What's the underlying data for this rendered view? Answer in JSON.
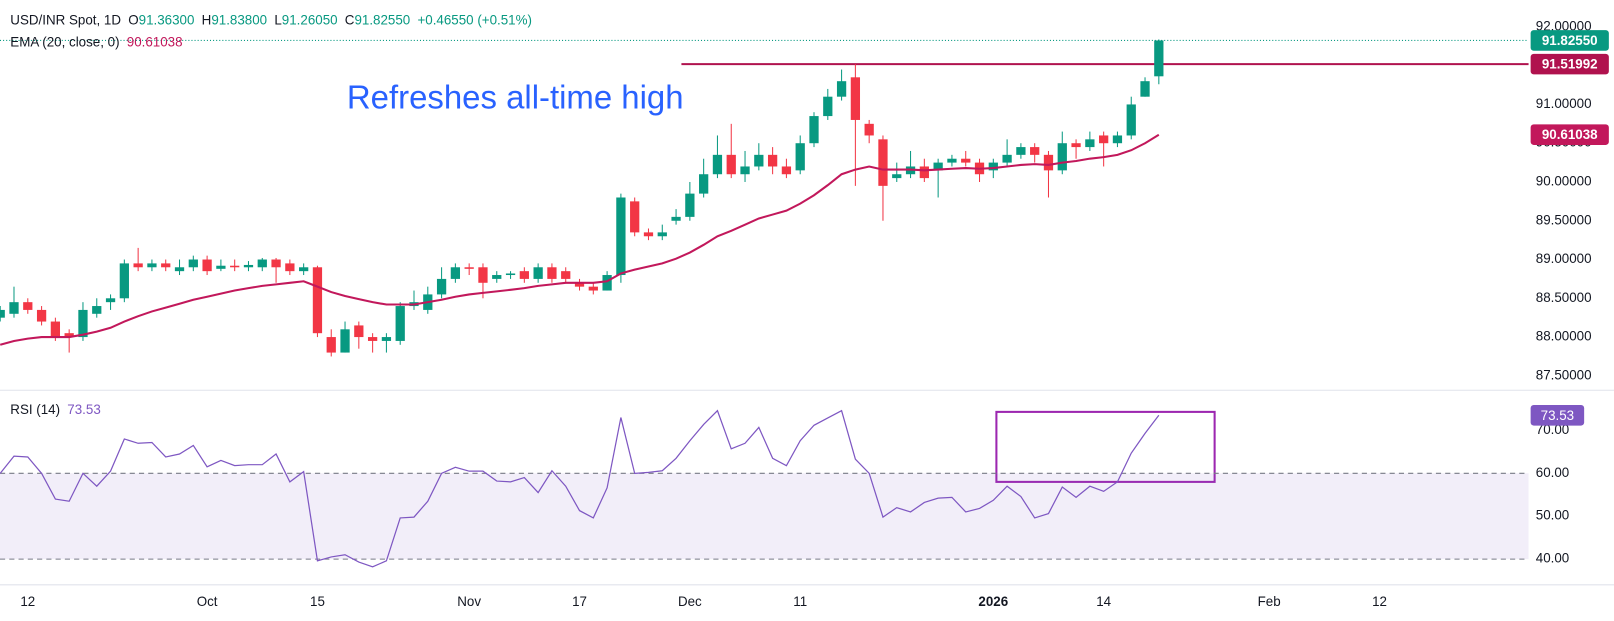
{
  "chart_data": [
    {
      "type": "candlestick",
      "title": "USD/INR Spot, 1D",
      "header": [
        {
          "label": "O",
          "value": "91.36300"
        },
        {
          "label": "H",
          "value": "91.83800"
        },
        {
          "label": "L",
          "value": "91.26050"
        },
        {
          "label": "C",
          "value": "91.82550"
        }
      ],
      "change": "+0.46550 (+0.51%)",
      "annotation": "Refreshes all-time high",
      "up_color": "#089981",
      "down_color": "#f23645",
      "categories": [
        null,
        null,
        "12",
        null,
        null,
        null,
        null,
        null,
        null,
        null,
        null,
        null,
        null,
        null,
        null,
        "Oct",
        null,
        null,
        null,
        null,
        null,
        null,
        null,
        "15",
        null,
        null,
        null,
        null,
        null,
        null,
        null,
        null,
        null,
        null,
        "Nov",
        null,
        null,
        null,
        null,
        null,
        null,
        null,
        "17",
        null,
        null,
        null,
        null,
        null,
        null,
        null,
        "Dec",
        null,
        null,
        null,
        null,
        null,
        null,
        null,
        "11",
        null,
        null,
        null,
        null,
        null,
        null,
        null,
        null,
        null,
        null,
        null,
        null,
        null,
        "2026",
        null,
        null,
        null,
        null,
        null,
        null,
        null,
        "14",
        null,
        null,
        null,
        null,
        null,
        null,
        null,
        null,
        null,
        null,
        null,
        "Feb",
        null,
        null,
        null,
        null,
        null,
        null,
        null,
        "12",
        null,
        null,
        null,
        null,
        null,
        null,
        null,
        null,
        null,
        null
      ],
      "open": [
        88.25,
        88.3,
        88.45,
        88.35,
        88.2,
        88.05,
        88.0,
        88.3,
        88.45,
        88.5,
        88.95,
        88.9,
        88.95,
        88.85,
        88.9,
        89.0,
        88.88,
        88.92,
        88.9,
        88.9,
        89.0,
        88.95,
        88.85,
        88.9,
        88.0,
        87.8,
        88.15,
        88.0,
        87.95,
        87.95,
        88.4,
        88.35,
        88.55,
        88.75,
        88.9,
        88.9,
        88.75,
        88.8,
        88.85,
        88.75,
        88.9,
        88.85,
        88.7,
        88.65,
        88.6,
        88.8,
        89.75,
        89.35,
        89.3,
        89.5,
        89.55,
        89.85,
        90.1,
        90.35,
        90.1,
        90.2,
        90.35,
        90.2,
        90.15,
        90.5,
        90.85,
        91.1,
        91.35,
        90.75,
        90.55,
        90.05,
        90.1,
        90.2,
        90.15,
        90.25,
        90.3,
        90.25,
        90.15,
        90.25,
        90.35,
        90.45,
        90.35,
        90.15,
        90.5,
        90.45,
        90.6,
        90.5,
        90.6,
        91.1,
        91.363,
        null,
        null,
        null,
        null,
        null,
        null,
        null,
        null,
        null,
        null,
        null,
        null,
        null,
        null,
        null,
        null,
        null,
        null,
        null,
        null,
        null,
        null,
        null,
        null,
        null,
        null
      ],
      "high": [
        88.4,
        88.65,
        88.5,
        88.4,
        88.25,
        88.1,
        88.45,
        88.5,
        88.55,
        89.0,
        89.15,
        89.0,
        89.0,
        89.0,
        89.05,
        89.05,
        89.0,
        89.0,
        88.98,
        89.02,
        89.02,
        89.0,
        88.95,
        88.92,
        88.1,
        88.2,
        88.2,
        88.05,
        88.05,
        88.45,
        88.6,
        88.65,
        88.9,
        88.95,
        88.95,
        88.95,
        88.85,
        88.85,
        88.9,
        88.95,
        88.95,
        88.9,
        88.75,
        88.7,
        88.85,
        89.85,
        89.8,
        89.4,
        89.45,
        89.65,
        90.0,
        90.3,
        90.6,
        90.75,
        90.4,
        90.5,
        90.45,
        90.3,
        90.6,
        90.9,
        91.2,
        91.45,
        91.52,
        90.8,
        90.6,
        90.25,
        90.4,
        90.3,
        90.3,
        90.35,
        90.4,
        90.3,
        90.3,
        90.55,
        90.5,
        90.5,
        90.4,
        90.65,
        90.55,
        90.65,
        90.65,
        90.65,
        91.1,
        91.35,
        91.838,
        null,
        null,
        null,
        null,
        null,
        null,
        null,
        null,
        null,
        null,
        null,
        null,
        null,
        null,
        null,
        null,
        null,
        null,
        null,
        null,
        null,
        null,
        null,
        null,
        null,
        null
      ],
      "low": [
        88.2,
        88.25,
        88.3,
        88.15,
        87.95,
        87.8,
        87.95,
        88.25,
        88.35,
        88.45,
        88.85,
        88.85,
        88.85,
        88.8,
        88.85,
        88.8,
        88.85,
        88.85,
        88.85,
        88.85,
        88.7,
        88.8,
        88.8,
        88.0,
        87.75,
        87.8,
        87.85,
        87.8,
        87.8,
        87.9,
        88.35,
        88.3,
        88.5,
        88.7,
        88.8,
        88.5,
        88.7,
        88.75,
        88.7,
        88.7,
        88.7,
        88.7,
        88.6,
        88.55,
        88.6,
        88.7,
        89.3,
        89.25,
        89.25,
        89.45,
        89.5,
        89.8,
        90.05,
        90.05,
        90.0,
        90.15,
        90.1,
        90.05,
        90.1,
        90.45,
        90.8,
        91.05,
        89.95,
        90.5,
        89.5,
        90.0,
        90.05,
        90.0,
        89.8,
        90.2,
        90.2,
        90.0,
        90.05,
        90.2,
        90.3,
        90.25,
        89.8,
        90.1,
        90.3,
        90.4,
        90.2,
        90.45,
        90.55,
        91.1,
        91.2605,
        null,
        null,
        null,
        null,
        null,
        null,
        null,
        null,
        null,
        null,
        null,
        null,
        null,
        null,
        null,
        null,
        null,
        null,
        null,
        null,
        null,
        null,
        null,
        null,
        null,
        null
      ],
      "close": [
        88.35,
        88.45,
        88.35,
        88.2,
        88.0,
        88.0,
        88.35,
        88.4,
        88.5,
        88.95,
        88.9,
        88.95,
        88.9,
        88.9,
        89.0,
        88.85,
        88.92,
        88.9,
        88.93,
        89.0,
        88.9,
        88.85,
        88.9,
        88.05,
        87.8,
        88.1,
        88.0,
        87.95,
        88.0,
        88.4,
        88.45,
        88.55,
        88.75,
        88.9,
        88.88,
        88.7,
        88.8,
        88.82,
        88.75,
        88.9,
        88.75,
        88.75,
        88.65,
        88.6,
        88.8,
        89.8,
        89.35,
        89.3,
        89.35,
        89.55,
        89.85,
        90.1,
        90.35,
        90.1,
        90.2,
        90.35,
        90.2,
        90.1,
        90.5,
        90.85,
        91.1,
        91.3,
        90.8,
        90.6,
        89.95,
        90.1,
        90.2,
        90.05,
        90.25,
        90.3,
        90.25,
        90.1,
        90.25,
        90.35,
        90.45,
        90.35,
        90.15,
        90.5,
        90.45,
        90.55,
        90.5,
        90.6,
        91.0,
        91.3,
        91.8255,
        null,
        null,
        null,
        null,
        null,
        null,
        null,
        null,
        null,
        null,
        null,
        null,
        null,
        null,
        null,
        null,
        null,
        null,
        null,
        null,
        null,
        null,
        null,
        null,
        null,
        null
      ],
      "last_label": "91.82550",
      "series": [
        {
          "name": "EMA (20, close, 0)",
          "color": "#c2185b",
          "value_label": "90.61038",
          "values": [
            87.9,
            87.95,
            87.98,
            88.0,
            88.0,
            88.0,
            88.03,
            88.07,
            88.12,
            88.2,
            88.27,
            88.33,
            88.38,
            88.43,
            88.48,
            88.52,
            88.56,
            88.6,
            88.63,
            88.66,
            88.68,
            88.7,
            88.72,
            88.65,
            88.58,
            88.53,
            88.49,
            88.45,
            88.42,
            88.42,
            88.42,
            88.45,
            88.48,
            88.52,
            88.55,
            88.57,
            88.59,
            88.61,
            88.63,
            88.66,
            88.68,
            88.7,
            88.7,
            88.7,
            88.72,
            88.82,
            88.87,
            88.91,
            88.95,
            89.01,
            89.09,
            89.19,
            89.3,
            89.37,
            89.45,
            89.53,
            89.58,
            89.63,
            89.72,
            89.83,
            89.96,
            90.1,
            90.16,
            90.2,
            90.16,
            90.16,
            90.16,
            90.15,
            90.16,
            90.17,
            90.18,
            90.17,
            90.18,
            90.2,
            90.22,
            90.23,
            90.22,
            90.25,
            90.27,
            90.3,
            90.32,
            90.35,
            90.41,
            90.5,
            90.61038,
            null,
            null,
            null,
            null,
            null,
            null,
            null,
            null,
            null,
            null,
            null,
            null,
            null,
            null,
            null,
            null,
            null,
            null,
            null,
            null,
            null,
            null,
            null,
            null,
            null,
            null
          ]
        }
      ],
      "level": {
        "value": 91.51992,
        "label": "91.51992",
        "color": "#b0124e"
      },
      "ylim": [
        87.327,
        92.345
      ],
      "yticks": [
        {
          "value": 87.5,
          "label": "87.50000"
        },
        {
          "value": 88,
          "label": "88.00000"
        },
        {
          "value": 88.5,
          "label": "88.50000"
        },
        {
          "value": 89,
          "label": "89.00000"
        },
        {
          "value": 89.5,
          "label": "89.50000"
        },
        {
          "value": 90,
          "label": "90.00000"
        },
        {
          "value": 90.5,
          "label": "90.50000"
        },
        {
          "value": 91,
          "label": "91.00000"
        },
        {
          "value": 91.5,
          "label": "91.50000"
        },
        {
          "value": 92,
          "label": "92.00000"
        }
      ]
    },
    {
      "type": "line",
      "series": [
        {
          "name": "RSI (14)",
          "color": "#7e57c2",
          "value_label": "73.53",
          "values": [
            60,
            64,
            63.8,
            60,
            54,
            53.5,
            60,
            57,
            60.5,
            68,
            67,
            67.2,
            63.8,
            64.5,
            66.5,
            61.5,
            63,
            61.8,
            62,
            62,
            64.5,
            58,
            60.4,
            39.6,
            40.5,
            41,
            39.3,
            38.2,
            39.6,
            49.6,
            49.8,
            53.5,
            60,
            61.4,
            60.5,
            60.5,
            58.2,
            58,
            59,
            55.5,
            60.6,
            57,
            51.3,
            49.6,
            56.6,
            73,
            60,
            60.2,
            60.6,
            63.5,
            67.6,
            71.4,
            74.6,
            65.7,
            67,
            70.7,
            63.5,
            61.8,
            67.6,
            71.2,
            72.9,
            74.6,
            63.3,
            60,
            49.8,
            52,
            51,
            53.2,
            54.2,
            54.4,
            51,
            51.8,
            53.7,
            57,
            54.6,
            49.6,
            50.6,
            56.8,
            54.4,
            57,
            55.8,
            58,
            64.7,
            69.3,
            73.53,
            null,
            null,
            null,
            null,
            null,
            null,
            null,
            null,
            null,
            null,
            null,
            null,
            null,
            null,
            null,
            null,
            null,
            null,
            null,
            null,
            null,
            null,
            null,
            null,
            null,
            null
          ]
        }
      ],
      "bands": [
        40,
        60
      ],
      "ylim": [
        34.24,
        79.12
      ],
      "yticks": [
        {
          "value": 40,
          "label": "40.00"
        },
        {
          "value": 50,
          "label": "50.00"
        },
        {
          "value": 60,
          "label": "60.00"
        },
        {
          "value": 70,
          "label": "70.00"
        }
      ]
    }
  ]
}
